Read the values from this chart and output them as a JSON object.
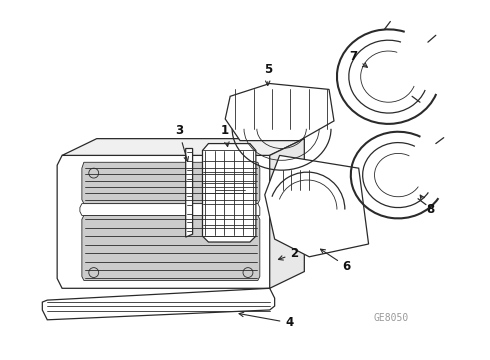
{
  "bg_color": "#ffffff",
  "line_color": "#2a2a2a",
  "arrow_color": "#2a2a2a",
  "watermark": "GE8050",
  "watermark_color": "#999999",
  "label_fontsize": 8.5,
  "label_fontweight": "bold",
  "label_color": "#111111"
}
